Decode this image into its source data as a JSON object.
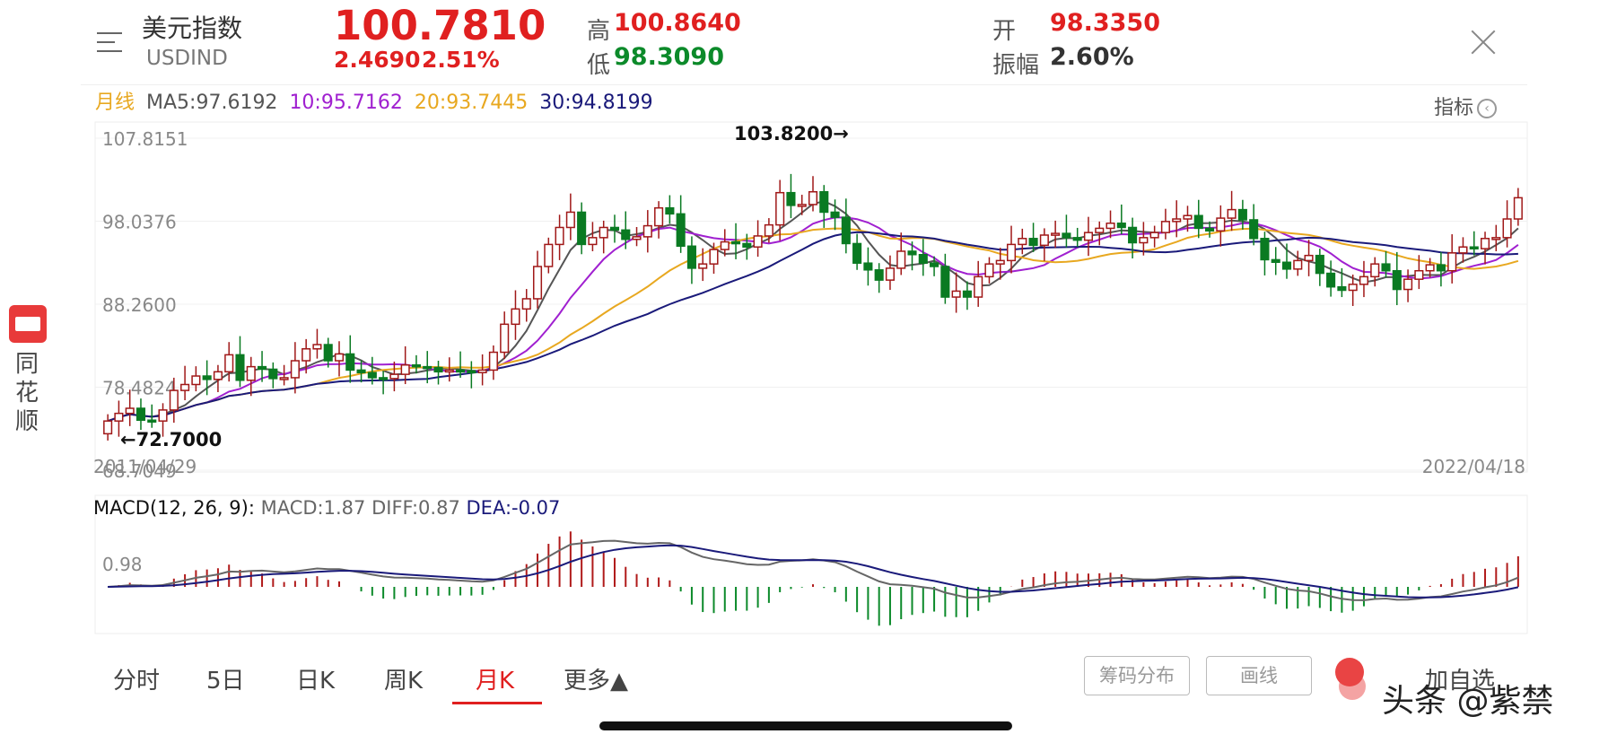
{
  "header": {
    "name": "美元指数",
    "code": "USDIND",
    "price": "100.7810",
    "change": "2.4690",
    "change_pct": "2.51%",
    "high_label": "高",
    "high_value": "100.8640",
    "low_label": "低",
    "low_value": "98.3090",
    "open_label": "开",
    "open_value": "98.3350",
    "amp_label": "振幅",
    "amp_value": "2.60%"
  },
  "ma_row": {
    "period": "月线",
    "ma5": "MA5:97.6192",
    "ma10": "10:95.7162",
    "ma20": "20:93.7445",
    "ma30": "30:94.8199"
  },
  "indicator_button": "指标",
  "sidebar": {
    "app_name": "同花顺"
  },
  "colors": {
    "up": "#e02020",
    "down": "#0c8a2a",
    "ma5": "#555555",
    "ma10": "#a020d0",
    "ma20": "#e8a820",
    "ma30": "#1a1a7a"
  },
  "chart_data": {
    "type": "candlestick",
    "y_ticks": [
      "107.8151",
      "98.0376",
      "88.2600",
      "78.4824",
      "68.7049"
    ],
    "ylim": [
      68.7049,
      107.8151
    ],
    "x_start": "2011/04/29",
    "x_end": "2022/04/18",
    "max_annotation": "103.8200→",
    "min_annotation": "←72.7000",
    "close": [
      74.5,
      75.4,
      76.0,
      74.6,
      74.5,
      75.8,
      78.1,
      78.8,
      79.8,
      79.4,
      80.3,
      82.3,
      79.3,
      80.9,
      80.6,
      79.5,
      79.6,
      81.6,
      83.0,
      83.5,
      81.6,
      82.4,
      80.5,
      80.2,
      79.6,
      79.5,
      80.0,
      81.1,
      80.9,
      80.8,
      80.3,
      80.5,
      80.4,
      80.2,
      80.5,
      82.6,
      85.9,
      87.7,
      88.9,
      92.7,
      95.3,
      97.3,
      99.1,
      95.3,
      96.1,
      97.3,
      97.0,
      95.9,
      96.2,
      97.5,
      99.6,
      98.9,
      95.1,
      92.5,
      93.0,
      94.7,
      95.6,
      95.4,
      95.0,
      96.3,
      97.6,
      101.4,
      99.9,
      100.0,
      101.5,
      99.1,
      98.5,
      95.4,
      93.1,
      92.3,
      91.1,
      92.5,
      94.5,
      94.1,
      93.1,
      92.7,
      89.1,
      89.8,
      89.1,
      91.5,
      93.0,
      93.4,
      95.3,
      96.0,
      95.2,
      96.4,
      96.6,
      96.1,
      95.8,
      96.7,
      97.2,
      97.8,
      97.3,
      95.5,
      96.1,
      96.7,
      98.0,
      98.3,
      98.7,
      97.2,
      96.9,
      98.4,
      99.4,
      98.2,
      96.0,
      93.5,
      93.2,
      92.4,
      93.4,
      94.0,
      91.9,
      90.3,
      89.9,
      90.6,
      91.5,
      93.0,
      92.2,
      90.0,
      91.2,
      92.2,
      92.9,
      92.2,
      94.3,
      95.0,
      94.8,
      96.0,
      96.1,
      98.3,
      100.8
    ],
    "series": [
      {
        "name": "MA5",
        "value": 97.6192
      },
      {
        "name": "MA10",
        "value": 95.7162
      },
      {
        "name": "MA20",
        "value": 93.7445
      },
      {
        "name": "MA30",
        "value": 94.8199
      }
    ]
  },
  "macd": {
    "label": "MACD(12, 26, 9):",
    "macd": "MACD:1.87",
    "diff": "DIFF:0.87",
    "dea": "DEA:-0.07",
    "tick": "0.98"
  },
  "tabs": [
    {
      "label": "分时"
    },
    {
      "label": "5日"
    },
    {
      "label": "日K"
    },
    {
      "label": "周K"
    },
    {
      "label": "月K"
    },
    {
      "label": "更多▲"
    }
  ],
  "buttons": {
    "chip_dist": "筹码分布",
    "draw_line": "画线",
    "add_fav": "加自选"
  },
  "watermark": "头条 @紫禁"
}
